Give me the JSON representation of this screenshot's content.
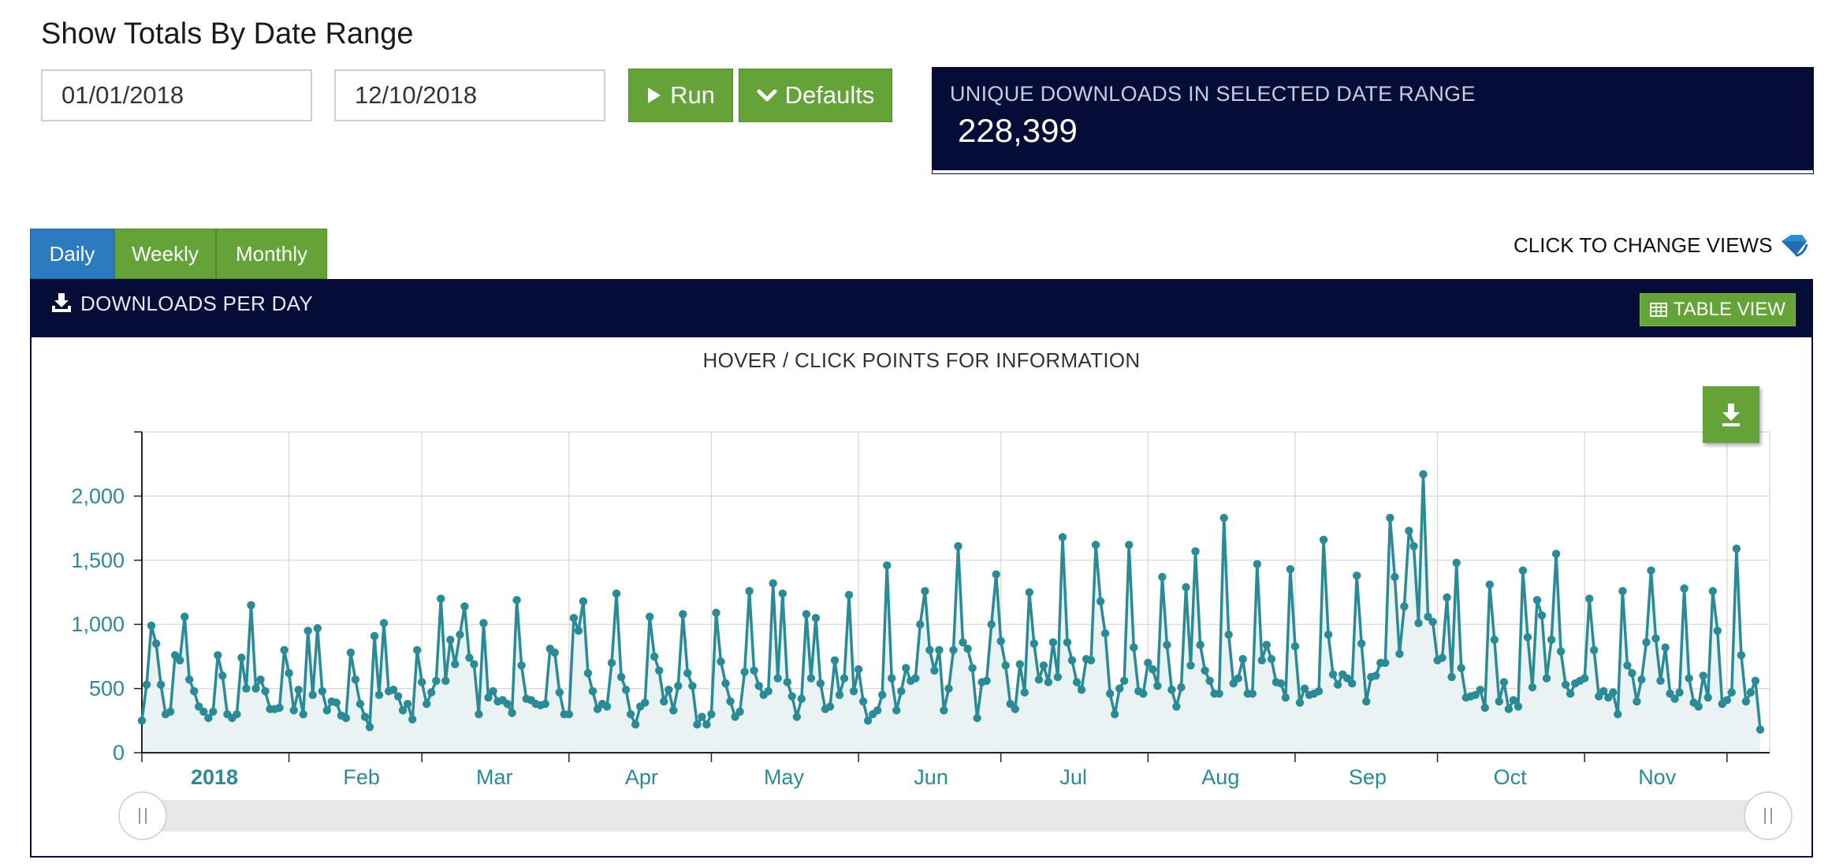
{
  "header": {
    "title": "Show Totals By Date Range"
  },
  "date_range": {
    "start": "01/01/2018",
    "end": "12/10/2018"
  },
  "buttons": {
    "run": "Run",
    "defaults": "Defaults"
  },
  "stat": {
    "label": "UNIQUE DOWNLOADS IN SELECTED DATE RANGE",
    "value": "228,399"
  },
  "tabs": [
    {
      "label": "Daily",
      "active": true
    },
    {
      "label": "Weekly",
      "active": false
    },
    {
      "label": "Monthly",
      "active": false
    }
  ],
  "change_views": "CLICK TO CHANGE VIEWS",
  "panel": {
    "title": "DOWNLOADS PER DAY",
    "table_view": "TABLE VIEW",
    "hint": "HOVER / CLICK POINTS FOR INFORMATION"
  },
  "colors": {
    "navy": "#050c36",
    "green": "#64a338",
    "blue": "#2c7bbf",
    "series": "#2a8a96",
    "area": "#eaf3f4"
  },
  "chart_data": {
    "type": "area",
    "series_name": "",
    "x_start": "2018-01-01",
    "x_end": "2018-12-10",
    "ylim": [
      0,
      2500
    ],
    "y_ticks": [
      "0",
      "500",
      "1,000",
      "1,500",
      "2,000"
    ],
    "x_ticks": [
      {
        "label": "2018",
        "date": "2018-01-01",
        "bold": true
      },
      {
        "label": "Feb",
        "date": "2018-02-01"
      },
      {
        "label": "Mar",
        "date": "2018-03-01"
      },
      {
        "label": "Apr",
        "date": "2018-04-01"
      },
      {
        "label": "May",
        "date": "2018-05-01"
      },
      {
        "label": "Jun",
        "date": "2018-06-01"
      },
      {
        "label": "Jul",
        "date": "2018-07-01"
      },
      {
        "label": "Aug",
        "date": "2018-08-01"
      },
      {
        "label": "Sep",
        "date": "2018-09-01"
      },
      {
        "label": "Oct",
        "date": "2018-10-01"
      },
      {
        "label": "Nov",
        "date": "2018-11-01"
      },
      {
        "label": "",
        "date": "2018-12-01"
      }
    ],
    "grid": true,
    "legend": "none",
    "values": [
      250,
      530,
      990,
      850,
      530,
      300,
      320,
      760,
      720,
      1060,
      570,
      480,
      360,
      320,
      270,
      320,
      760,
      600,
      300,
      270,
      300,
      740,
      500,
      1150,
      500,
      570,
      480,
      340,
      340,
      350,
      800,
      620,
      330,
      490,
      300,
      950,
      450,
      970,
      480,
      330,
      400,
      390,
      290,
      270,
      780,
      570,
      380,
      280,
      200,
      910,
      450,
      1010,
      480,
      490,
      440,
      330,
      380,
      260,
      800,
      550,
      380,
      470,
      560,
      1200,
      560,
      880,
      690,
      920,
      1140,
      740,
      690,
      300,
      1010,
      430,
      480,
      400,
      410,
      380,
      310,
      1190,
      680,
      420,
      410,
      380,
      370,
      380,
      810,
      780,
      470,
      300,
      300,
      1050,
      950,
      1180,
      620,
      480,
      340,
      380,
      360,
      700,
      1240,
      590,
      490,
      300,
      220,
      360,
      390,
      1060,
      750,
      640,
      400,
      490,
      330,
      520,
      1080,
      620,
      520,
      220,
      280,
      220,
      300,
      1090,
      710,
      540,
      400,
      280,
      320,
      630,
      1260,
      640,
      520,
      450,
      480,
      1320,
      580,
      1240,
      550,
      440,
      280,
      420,
      1080,
      580,
      1050,
      540,
      340,
      360,
      720,
      450,
      580,
      1230,
      480,
      650,
      400,
      250,
      300,
      330,
      450,
      1460,
      580,
      330,
      480,
      660,
      560,
      580,
      1000,
      1260,
      800,
      640,
      800,
      330,
      500,
      800,
      1610,
      860,
      810,
      660,
      270,
      550,
      560,
      1000,
      1390,
      870,
      680,
      380,
      340,
      690,
      470,
      1250,
      850,
      570,
      680,
      550,
      860,
      590,
      1680,
      860,
      720,
      550,
      490,
      730,
      720,
      1620,
      1180,
      930,
      460,
      300,
      500,
      560,
      1620,
      820,
      480,
      460,
      700,
      650,
      520,
      1370,
      840,
      490,
      360,
      510,
      1290,
      680,
      1570,
      840,
      640,
      560,
      460,
      460,
      1830,
      920,
      540,
      580,
      730,
      460,
      460,
      1470,
      720,
      840,
      730,
      550,
      540,
      430,
      1430,
      830,
      390,
      500,
      450,
      460,
      480,
      1660,
      920,
      610,
      530,
      610,
      580,
      540,
      1380,
      850,
      400,
      590,
      600,
      700,
      700,
      1830,
      1370,
      770,
      1140,
      1730,
      1610,
      1010,
      2170,
      1060,
      1020,
      720,
      740,
      1210,
      590,
      1480,
      660,
      430,
      440,
      450,
      490,
      350,
      1310,
      880,
      400,
      550,
      340,
      410,
      360,
      1420,
      900,
      510,
      1190,
      1070,
      580,
      880,
      1550,
      790,
      530,
      460,
      540,
      560,
      580,
      1200,
      800,
      440,
      480,
      430,
      470,
      300,
      1260,
      680,
      620,
      400,
      570,
      860,
      1420,
      890,
      560,
      820,
      460,
      420,
      470,
      1280,
      580,
      390,
      360,
      600,
      430,
      1260,
      950,
      380,
      410,
      470,
      1590,
      760,
      400,
      470,
      560,
      180
    ]
  }
}
